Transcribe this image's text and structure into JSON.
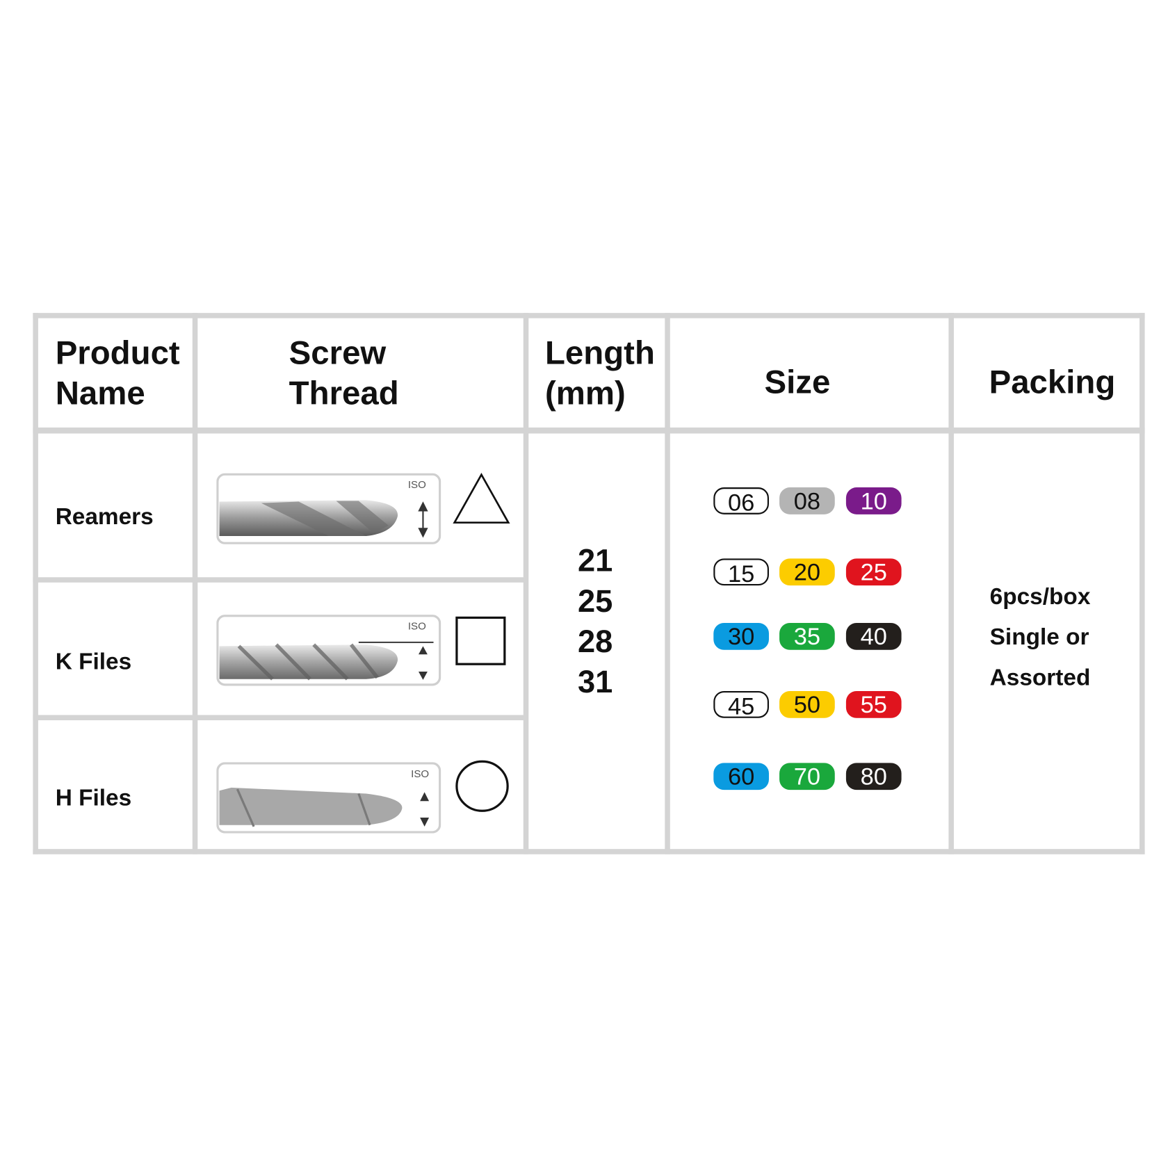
{
  "headers": {
    "product_name": [
      "Product",
      "Name"
    ],
    "screw_thread": [
      "Screw",
      "Thread"
    ],
    "length": [
      "Length",
      "(mm)"
    ],
    "size": "Size",
    "packing": "Packing"
  },
  "products": [
    {
      "name": "Reamers",
      "cross_section": "triangle-icon",
      "iso_label": "ISO"
    },
    {
      "name": "K Files",
      "cross_section": "square-icon",
      "iso_label": "ISO"
    },
    {
      "name": "H Files",
      "cross_section": "circle-icon",
      "iso_label": "ISO"
    }
  ],
  "lengths": [
    "21",
    "25",
    "28",
    "31"
  ],
  "sizes": [
    [
      {
        "v": "06",
        "bg": "#ffffff",
        "fg": "#111111"
      },
      {
        "v": "08",
        "bg": "#b4b4b4",
        "fg": "#111111"
      },
      {
        "v": "10",
        "bg": "#7a1b8a",
        "fg": "#ffffff"
      }
    ],
    [
      {
        "v": "15",
        "bg": "#ffffff",
        "fg": "#111111"
      },
      {
        "v": "20",
        "bg": "#fccc00",
        "fg": "#111111"
      },
      {
        "v": "25",
        "bg": "#e0141e",
        "fg": "#ffffff"
      }
    ],
    [
      {
        "v": "30",
        "bg": "#0a9be0",
        "fg": "#111111"
      },
      {
        "v": "35",
        "bg": "#1aa83c",
        "fg": "#ffffff"
      },
      {
        "v": "40",
        "bg": "#231f1c",
        "fg": "#ffffff"
      }
    ],
    [
      {
        "v": "45",
        "bg": "#ffffff",
        "fg": "#111111"
      },
      {
        "v": "50",
        "bg": "#fccc00",
        "fg": "#111111"
      },
      {
        "v": "55",
        "bg": "#e0141e",
        "fg": "#ffffff"
      }
    ],
    [
      {
        "v": "60",
        "bg": "#0a9be0",
        "fg": "#111111"
      },
      {
        "v": "70",
        "bg": "#1aa83c",
        "fg": "#ffffff"
      },
      {
        "v": "80",
        "bg": "#231f1c",
        "fg": "#ffffff"
      }
    ]
  ],
  "packing": [
    "6pcs/box",
    "Single or",
    "Assorted"
  ],
  "colors": {
    "grid": "#d4d4d4"
  }
}
